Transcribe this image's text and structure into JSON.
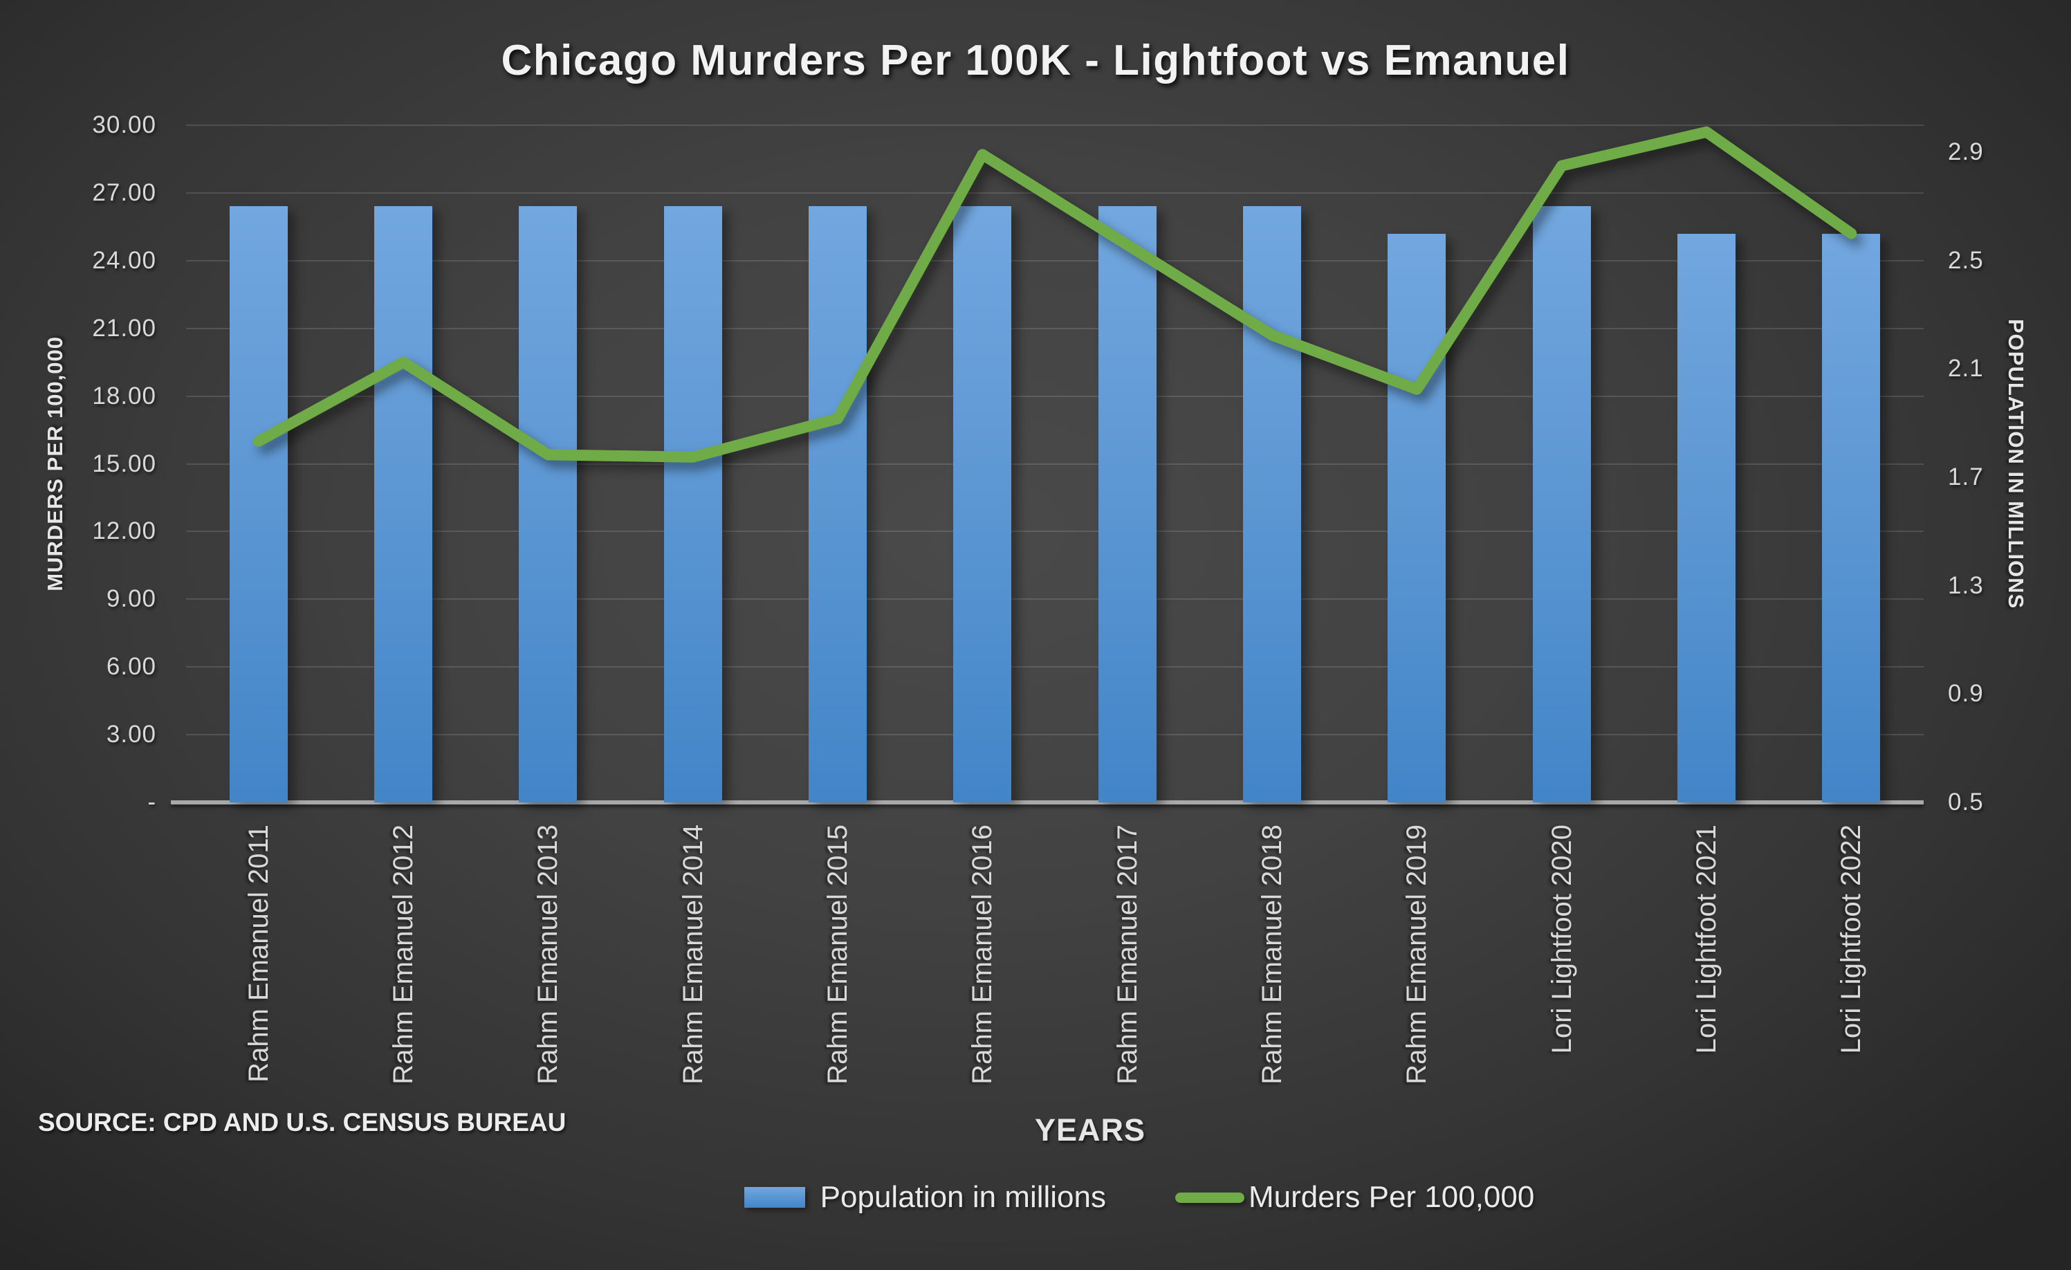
{
  "title": "Chicago Murders Per 100K - Lightfoot vs Emanuel",
  "source_note": "SOURCE: CPD AND U.S. CENSUS BUREAU",
  "axes": {
    "x_title": "YEARS",
    "left_title": "MURDERS PER 100,000",
    "right_title": "POPULATION IN MILLIONS"
  },
  "legend": {
    "items": [
      {
        "label": "Population in millions",
        "marker": "bar-swatch",
        "color": "#5B9BD5"
      },
      {
        "label": "Murders Per 100,000",
        "marker": "line-swatch",
        "color": "#6FAC47"
      }
    ]
  },
  "colors": {
    "bar_top": "#72A7DF",
    "bar_bottom": "#4285C8",
    "line": "#6FAC47",
    "grid": "rgba(255,255,255,0.13)",
    "axis_line": "#A8A8A8",
    "tick_text": "#D9D9D9",
    "title_text": "#F2F2F2"
  },
  "chart_data": {
    "type": "combo",
    "categories": [
      "Rahm Emanuel 2011",
      "Rahm Emanuel 2012",
      "Rahm Emanuel 2013",
      "Rahm Emanuel 2014",
      "Rahm Emanuel 2015",
      "Rahm Emanuel 2016",
      "Rahm Emanuel 2017",
      "Rahm Emanuel 2018",
      "Rahm Emanuel 2019",
      "Lori Lightfoot 2020",
      "Lori Lightfoot 2021",
      "Lori Lightfoot 2022"
    ],
    "series": [
      {
        "name": "Population in millions",
        "type": "bar",
        "axis": "right",
        "values": [
          2.7,
          2.7,
          2.7,
          2.7,
          2.7,
          2.7,
          2.7,
          2.7,
          2.6,
          2.7,
          2.6,
          2.6
        ]
      },
      {
        "name": "Murders Per 100,000",
        "type": "line",
        "axis": "left",
        "values": [
          16.0,
          19.5,
          15.4,
          15.3,
          17.0,
          28.7,
          24.7,
          20.7,
          18.3,
          28.2,
          29.7,
          25.2
        ]
      }
    ],
    "left_axis": {
      "title": "MURDERS PER 100,000",
      "min": 0,
      "max": 30,
      "major_unit": 3,
      "tick_labels": [
        "30.00",
        "27.00",
        "24.00",
        "21.00",
        "18.00",
        "15.00",
        "12.00",
        "9.00",
        "6.00",
        "3.00",
        "-"
      ],
      "tick_values": [
        30,
        27,
        24,
        21,
        18,
        15,
        12,
        9,
        6,
        3,
        0
      ]
    },
    "right_axis": {
      "title": "POPULATION IN MILLIONS",
      "min": 0.5,
      "max": 3.0,
      "major_unit": 0.4,
      "tick_labels": [
        "2.9",
        "2.5",
        "2.1",
        "1.7",
        "1.3",
        "0.9",
        "0.5"
      ],
      "tick_values": [
        2.9,
        2.5,
        2.1,
        1.7,
        1.3,
        0.9,
        0.5
      ]
    },
    "grid": true,
    "legend_position": "bottom"
  }
}
